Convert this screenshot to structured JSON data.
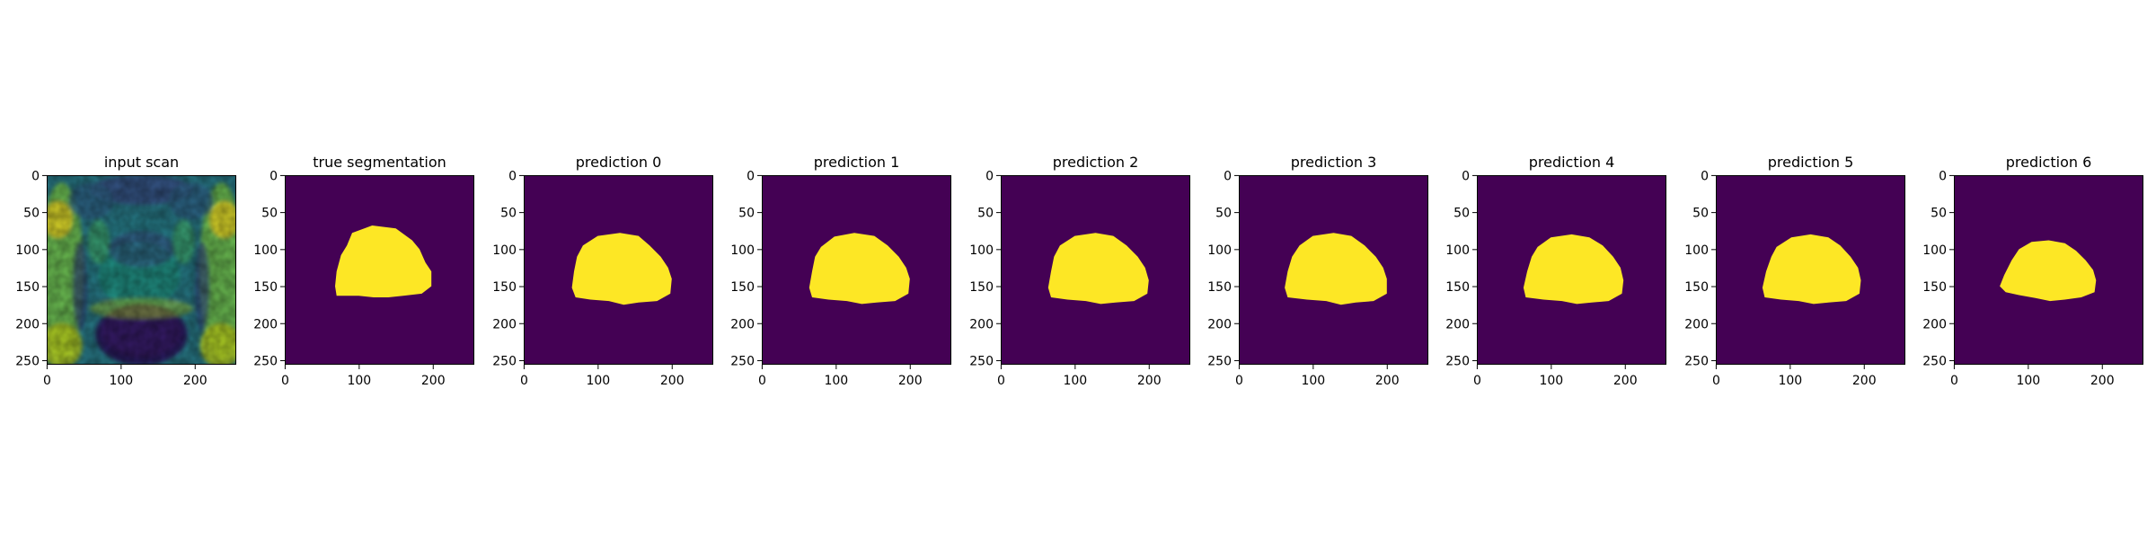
{
  "chart_data": {
    "type": "heatmap",
    "panel_count": 9,
    "colormap": "viridis",
    "colors": {
      "mask_background": "#440154",
      "mask_foreground": "#fde725"
    },
    "shared_axes": {
      "xlim": [
        0,
        255
      ],
      "ylim": [
        255,
        0
      ],
      "xticks": [
        0,
        100,
        200
      ],
      "yticks": [
        0,
        50,
        100,
        150,
        200,
        250
      ],
      "grid": false
    },
    "panels": [
      {
        "title": "input scan",
        "kind": "mri_scan"
      },
      {
        "title": "true segmentation",
        "kind": "mask",
        "mask_outline": [
          [
            91,
            78
          ],
          [
            118,
            68
          ],
          [
            150,
            72
          ],
          [
            172,
            88
          ],
          [
            182,
            100
          ],
          [
            190,
            118
          ],
          [
            198,
            130
          ],
          [
            198,
            150
          ],
          [
            185,
            160
          ],
          [
            160,
            163
          ],
          [
            140,
            165
          ],
          [
            120,
            165
          ],
          [
            100,
            163
          ],
          [
            70,
            163
          ],
          [
            68,
            150
          ],
          [
            70,
            130
          ],
          [
            76,
            108
          ],
          [
            84,
            95
          ]
        ]
      },
      {
        "title": "prediction 0",
        "kind": "mask",
        "mask_outline": [
          [
            80,
            95
          ],
          [
            100,
            82
          ],
          [
            130,
            78
          ],
          [
            155,
            82
          ],
          [
            170,
            95
          ],
          [
            185,
            110
          ],
          [
            195,
            125
          ],
          [
            200,
            140
          ],
          [
            198,
            160
          ],
          [
            180,
            170
          ],
          [
            155,
            172
          ],
          [
            135,
            175
          ],
          [
            115,
            170
          ],
          [
            90,
            168
          ],
          [
            70,
            165
          ],
          [
            65,
            152
          ],
          [
            68,
            130
          ],
          [
            72,
            110
          ]
        ]
      },
      {
        "title": "prediction 1",
        "kind": "mask",
        "mask_outline": [
          [
            80,
            97
          ],
          [
            98,
            83
          ],
          [
            125,
            78
          ],
          [
            152,
            82
          ],
          [
            170,
            95
          ],
          [
            185,
            110
          ],
          [
            195,
            125
          ],
          [
            200,
            140
          ],
          [
            198,
            160
          ],
          [
            180,
            170
          ],
          [
            155,
            172
          ],
          [
            135,
            174
          ],
          [
            115,
            170
          ],
          [
            90,
            168
          ],
          [
            68,
            165
          ],
          [
            64,
            152
          ],
          [
            68,
            130
          ],
          [
            72,
            110
          ]
        ]
      },
      {
        "title": "prediction 2",
        "kind": "mask",
        "mask_outline": [
          [
            80,
            95
          ],
          [
            100,
            82
          ],
          [
            128,
            78
          ],
          [
            152,
            82
          ],
          [
            170,
            95
          ],
          [
            185,
            110
          ],
          [
            195,
            125
          ],
          [
            200,
            142
          ],
          [
            198,
            160
          ],
          [
            180,
            170
          ],
          [
            155,
            172
          ],
          [
            135,
            174
          ],
          [
            115,
            170
          ],
          [
            90,
            168
          ],
          [
            68,
            165
          ],
          [
            64,
            152
          ],
          [
            68,
            130
          ],
          [
            72,
            110
          ]
        ]
      },
      {
        "title": "prediction 3",
        "kind": "mask",
        "mask_outline": [
          [
            82,
            95
          ],
          [
            100,
            82
          ],
          [
            128,
            78
          ],
          [
            152,
            82
          ],
          [
            170,
            95
          ],
          [
            185,
            110
          ],
          [
            195,
            125
          ],
          [
            200,
            140
          ],
          [
            200,
            160
          ],
          [
            182,
            170
          ],
          [
            158,
            172
          ],
          [
            138,
            175
          ],
          [
            118,
            170
          ],
          [
            92,
            168
          ],
          [
            66,
            165
          ],
          [
            62,
            152
          ],
          [
            66,
            130
          ],
          [
            72,
            110
          ]
        ]
      },
      {
        "title": "prediction 4",
        "kind": "mask",
        "mask_outline": [
          [
            82,
            97
          ],
          [
            100,
            84
          ],
          [
            128,
            80
          ],
          [
            152,
            84
          ],
          [
            170,
            95
          ],
          [
            184,
            110
          ],
          [
            194,
            125
          ],
          [
            198,
            142
          ],
          [
            196,
            160
          ],
          [
            178,
            170
          ],
          [
            155,
            172
          ],
          [
            135,
            174
          ],
          [
            115,
            170
          ],
          [
            90,
            168
          ],
          [
            66,
            165
          ],
          [
            63,
            152
          ],
          [
            68,
            130
          ],
          [
            74,
            110
          ]
        ]
      },
      {
        "title": "prediction 5",
        "kind": "mask",
        "mask_outline": [
          [
            82,
            97
          ],
          [
            102,
            84
          ],
          [
            128,
            80
          ],
          [
            152,
            84
          ],
          [
            168,
            95
          ],
          [
            182,
            110
          ],
          [
            192,
            125
          ],
          [
            196,
            142
          ],
          [
            194,
            160
          ],
          [
            176,
            170
          ],
          [
            152,
            172
          ],
          [
            132,
            174
          ],
          [
            112,
            170
          ],
          [
            88,
            168
          ],
          [
            66,
            165
          ],
          [
            63,
            152
          ],
          [
            68,
            130
          ],
          [
            75,
            110
          ]
        ]
      },
      {
        "title": "prediction 6",
        "kind": "mask",
        "mask_outline": [
          [
            88,
            100
          ],
          [
            105,
            90
          ],
          [
            128,
            88
          ],
          [
            150,
            92
          ],
          [
            165,
            102
          ],
          [
            178,
            115
          ],
          [
            188,
            128
          ],
          [
            192,
            142
          ],
          [
            190,
            158
          ],
          [
            172,
            165
          ],
          [
            150,
            168
          ],
          [
            130,
            170
          ],
          [
            110,
            166
          ],
          [
            88,
            162
          ],
          [
            70,
            158
          ],
          [
            62,
            150
          ],
          [
            68,
            135
          ],
          [
            78,
            115
          ]
        ]
      }
    ]
  }
}
